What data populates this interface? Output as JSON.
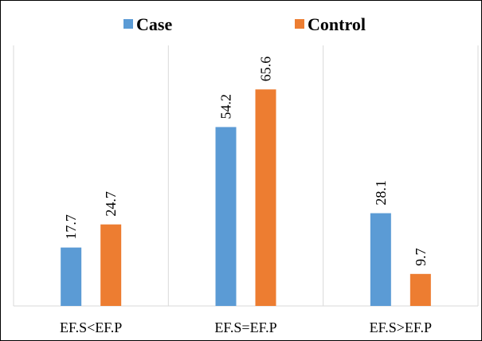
{
  "chart_data": {
    "type": "bar",
    "categories": [
      "EF.S<EF.P",
      "EF.S=EF.P",
      "EF.S>EF.P"
    ],
    "series": [
      {
        "name": "Case",
        "values": [
          17.7,
          54.2,
          28.1
        ],
        "color": "#5b9bd5"
      },
      {
        "name": "Control",
        "values": [
          24.7,
          65.6,
          9.7
        ],
        "color": "#ed7d31"
      }
    ],
    "ylim": [
      0,
      70
    ],
    "legend_position": "top-center",
    "grid": "vertical-category-separators",
    "value_labels": "rotated-vertical",
    "frame_color": "#000000",
    "grid_color": "#d9d9d9"
  }
}
